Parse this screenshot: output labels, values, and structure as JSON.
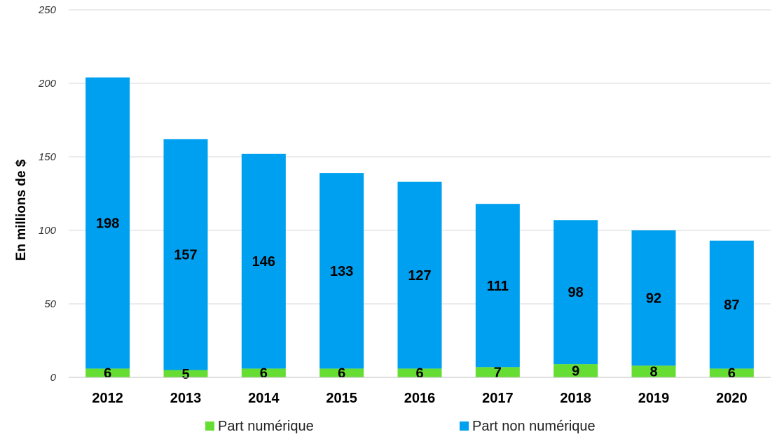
{
  "chart_data": {
    "type": "bar",
    "stacked": true,
    "categories": [
      "2012",
      "2013",
      "2014",
      "2015",
      "2016",
      "2017",
      "2018",
      "2019",
      "2020"
    ],
    "series": [
      {
        "name": "Part numérique",
        "color": "#66dd33",
        "values": [
          6,
          5,
          6,
          6,
          6,
          7,
          9,
          8,
          6
        ]
      },
      {
        "name": "Part non numérique",
        "color": "#00a0f0",
        "values": [
          198,
          157,
          146,
          133,
          127,
          111,
          98,
          92,
          87
        ]
      }
    ],
    "title": "",
    "xlabel": "",
    "ylabel": "En millions de $",
    "ylim": [
      0,
      250
    ],
    "yticks": [
      0,
      50,
      100,
      150,
      200,
      250
    ],
    "grid": true,
    "legend": "bottom"
  }
}
